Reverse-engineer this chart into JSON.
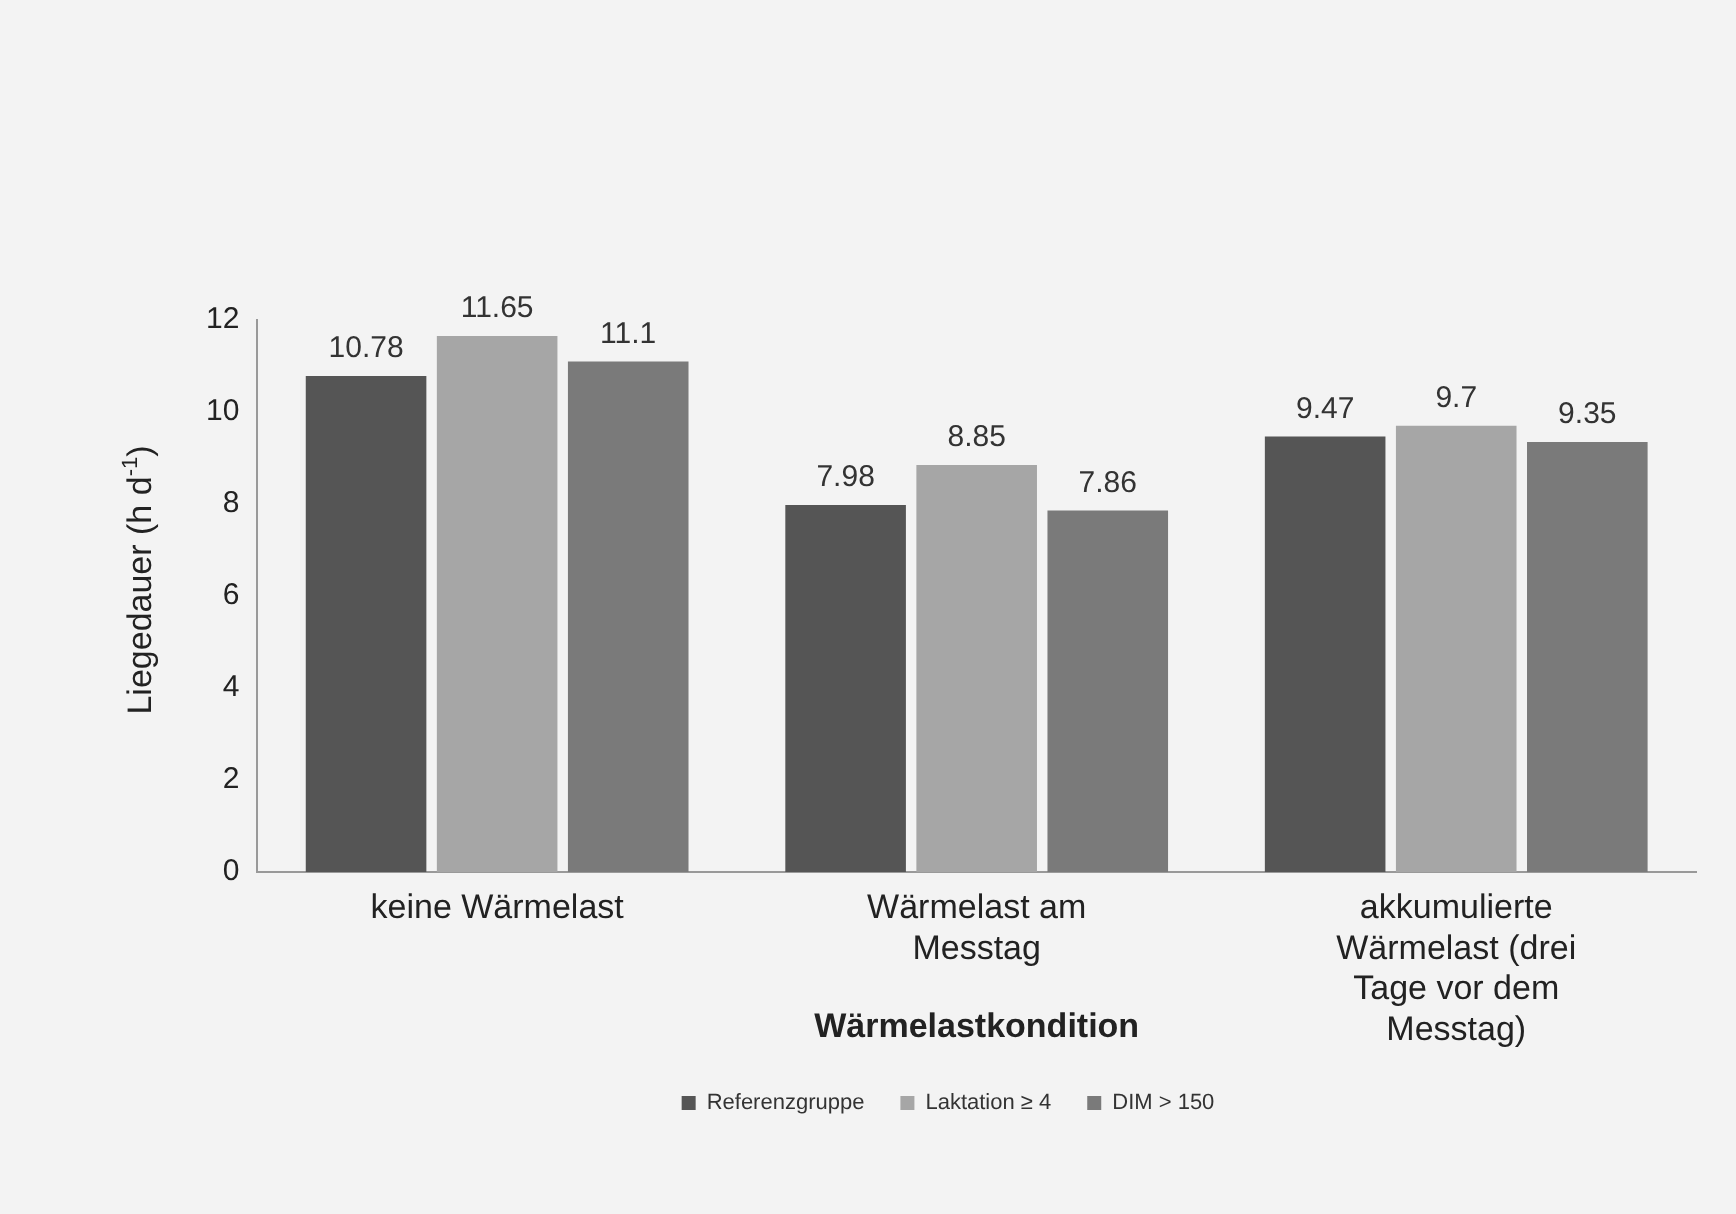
{
  "chart_data": {
    "type": "bar",
    "categories": [
      "keine Wärmelast",
      "Wärmelast am Messtag",
      "akkumulierte Wärmelast (drei Tage vor dem Messtag)"
    ],
    "xlabel": "Wärmelastkondition",
    "ylabel": "Liegedauer (h d$^{-1}$)",
    "series": [
      {
        "name": "Referenzgruppe",
        "color": "#555555",
        "values": [
          10.78,
          7.98,
          9.47
        ]
      },
      {
        "name": "Laktation ≥ 4",
        "color": "#a6a6a6",
        "values": [
          11.65,
          8.85,
          9.7
        ]
      },
      {
        "name": "DIM > 150",
        "color": "#7a7a7a",
        "values": [
          11.1,
          7.86,
          9.35
        ]
      }
    ],
    "ylim": [
      0,
      12
    ],
    "yticks": [
      0,
      2,
      4,
      6,
      8,
      10,
      12
    ],
    "data_labels": true,
    "legend": "bottom"
  }
}
